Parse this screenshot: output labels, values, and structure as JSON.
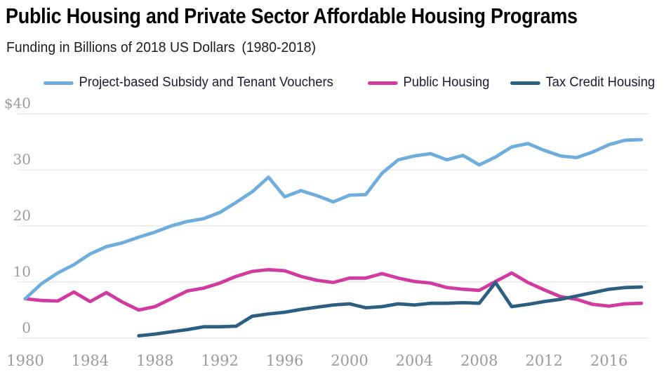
{
  "header": {
    "title": "Public Housing and Private Sector Affordable Housing Programs",
    "subtitle": "Funding in Billions of 2018 US Dollars",
    "subtitle_range": "(1980-2018)"
  },
  "chart_data": {
    "type": "line",
    "title": "Public Housing and Private Sector Affordable Housing Programs",
    "subtitle": "Funding in Billions of 2018 US Dollars (1980-2018)",
    "xlabel": "",
    "ylabel": "Funding in billions of 2018 US dollars",
    "ylim": [
      0,
      40
    ],
    "grid": true,
    "legend_position": "top",
    "x": [
      1980,
      1981,
      1982,
      1983,
      1984,
      1985,
      1986,
      1987,
      1988,
      1989,
      1990,
      1991,
      1992,
      1993,
      1994,
      1995,
      1996,
      1997,
      1998,
      1999,
      2000,
      2001,
      2002,
      2003,
      2004,
      2005,
      2006,
      2007,
      2008,
      2009,
      2010,
      2011,
      2012,
      2013,
      2014,
      2015,
      2016,
      2017,
      2018
    ],
    "series": [
      {
        "name": "Project-based Subsidy and Tenant Vouchers",
        "color": "#6FAEDC",
        "values": [
          7.0,
          9.7,
          11.6,
          13.1,
          15.0,
          16.3,
          17.0,
          18.0,
          18.9,
          20.0,
          20.8,
          21.3,
          22.4,
          24.2,
          26.1,
          28.7,
          25.2,
          26.3,
          25.4,
          24.3,
          25.5,
          25.6,
          29.4,
          31.8,
          32.5,
          32.9,
          31.8,
          32.6,
          30.9,
          32.3,
          34.1,
          34.7,
          33.5,
          32.5,
          32.2,
          33.2,
          34.5,
          35.3,
          35.4
        ]
      },
      {
        "name": "Public Housing",
        "color": "#D13BA0",
        "values": [
          7.0,
          6.7,
          6.6,
          8.2,
          6.5,
          8.1,
          6.4,
          5.0,
          5.6,
          7.0,
          8.4,
          8.9,
          9.8,
          11.0,
          11.9,
          12.2,
          12.0,
          11.0,
          10.3,
          9.9,
          10.7,
          10.7,
          11.5,
          10.7,
          10.1,
          9.8,
          9.0,
          8.7,
          8.5,
          10.1,
          11.6,
          9.9,
          8.6,
          7.4,
          6.9,
          6.0,
          5.7,
          6.1,
          6.2
        ]
      },
      {
        "name": "Tax Credit Housing",
        "color": "#2C5E82",
        "values": [
          null,
          null,
          null,
          null,
          null,
          null,
          null,
          0.4,
          0.7,
          1.1,
          1.5,
          2.0,
          2.0,
          2.1,
          3.9,
          4.3,
          4.6,
          5.1,
          5.5,
          5.9,
          6.1,
          5.4,
          5.6,
          6.1,
          5.9,
          6.2,
          6.2,
          6.3,
          6.2,
          9.9,
          5.6,
          6.0,
          6.5,
          6.9,
          7.5,
          8.1,
          8.7,
          9.0,
          9.1
        ]
      }
    ],
    "yticks": [
      "$40",
      "30",
      "20",
      "10",
      "0"
    ],
    "ytick_values": [
      40,
      30,
      20,
      10,
      0
    ],
    "xticks": [
      "1980",
      "1984",
      "1988",
      "1992",
      "1996",
      "2000",
      "2004",
      "2008",
      "2012",
      "2016"
    ],
    "xtick_values": [
      1980,
      1984,
      1988,
      1992,
      1996,
      2000,
      2004,
      2008,
      2012,
      2016
    ],
    "gridline_color": "#dcdcdc",
    "tick_color": "#9b9b9b"
  }
}
